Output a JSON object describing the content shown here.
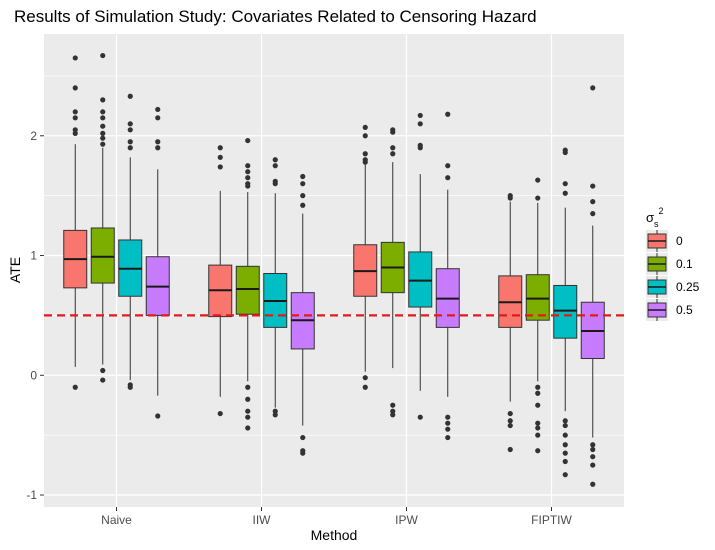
{
  "chart_data": {
    "type": "boxplot",
    "title": "Results of Simulation Study: Covariates Related to Censoring Hazard",
    "xlabel": "Method",
    "ylabel": "ATE",
    "categories": [
      "Naive",
      "IIW",
      "IPW",
      "FIPTIW"
    ],
    "ylim": [
      -1.1,
      2.85
    ],
    "y_ticks": [
      -1,
      0,
      1,
      2
    ],
    "grid": true,
    "reference_line": {
      "y": 0.5,
      "color": "#e31a1c",
      "style": "dashed"
    },
    "legend": {
      "position": "right",
      "title": "σs²",
      "entries": [
        {
          "label": "0",
          "color": "#F8766D"
        },
        {
          "label": "0.1",
          "color": "#7CAE00"
        },
        {
          "label": "0.25",
          "color": "#00BFC4"
        },
        {
          "label": "0.5",
          "color": "#C77CFF"
        }
      ]
    },
    "series": [
      {
        "name": "0",
        "color": "#F8766D",
        "boxes": [
          {
            "q1": 0.73,
            "median": 0.97,
            "q3": 1.21,
            "lower": 0.07,
            "upper": 1.93,
            "outliers": [
              2.65,
              2.4,
              2.2,
              2.15,
              2.05,
              2.02,
              -0.1
            ]
          },
          {
            "q1": 0.49,
            "median": 0.71,
            "q3": 0.92,
            "lower": -0.18,
            "upper": 1.54,
            "outliers": [
              1.9,
              1.82,
              1.74,
              -0.32
            ]
          },
          {
            "q1": 0.66,
            "median": 0.87,
            "q3": 1.09,
            "lower": 0.03,
            "upper": 1.76,
            "outliers": [
              2.07,
              2.0,
              1.85,
              1.8,
              1.78,
              -0.02,
              -0.1
            ]
          },
          {
            "q1": 0.4,
            "median": 0.61,
            "q3": 0.83,
            "lower": -0.22,
            "upper": 1.45,
            "outliers": [
              1.5,
              1.48,
              -0.32,
              -0.38,
              -0.42,
              -0.62
            ]
          }
        ]
      },
      {
        "name": "0.1",
        "color": "#7CAE00",
        "boxes": [
          {
            "q1": 0.77,
            "median": 0.99,
            "q3": 1.23,
            "lower": 0.09,
            "upper": 1.9,
            "outliers": [
              2.67,
              2.3,
              2.2,
              2.15,
              2.08,
              2.02,
              1.98,
              1.93,
              0.04,
              -0.04
            ]
          },
          {
            "q1": 0.51,
            "median": 0.72,
            "q3": 0.91,
            "lower": -0.05,
            "upper": 1.53,
            "outliers": [
              1.96,
              1.75,
              1.7,
              1.65,
              1.6,
              1.58,
              -0.1,
              -0.2,
              -0.3,
              -0.35,
              -0.44
            ]
          },
          {
            "q1": 0.69,
            "median": 0.9,
            "q3": 1.11,
            "lower": 0.06,
            "upper": 1.78,
            "outliers": [
              2.05,
              2.03,
              1.9,
              1.85,
              -0.25,
              -0.3,
              -0.33
            ]
          },
          {
            "q1": 0.46,
            "median": 0.64,
            "q3": 0.84,
            "lower": -0.05,
            "upper": 1.44,
            "outliers": [
              1.63,
              1.48,
              -0.1,
              -0.15,
              -0.25,
              -0.4,
              -0.44,
              -0.5,
              -0.63
            ]
          }
        ]
      },
      {
        "name": "0.25",
        "color": "#00BFC4",
        "boxes": [
          {
            "q1": 0.66,
            "median": 0.89,
            "q3": 1.13,
            "lower": -0.04,
            "upper": 1.82,
            "outliers": [
              2.33,
              2.1,
              2.05,
              1.95,
              1.9,
              -0.08,
              -0.1
            ]
          },
          {
            "q1": 0.4,
            "median": 0.62,
            "q3": 0.85,
            "lower": -0.27,
            "upper": 1.52,
            "outliers": [
              1.8,
              1.75,
              1.62,
              1.6,
              -0.3,
              -0.33
            ]
          },
          {
            "q1": 0.57,
            "median": 0.79,
            "q3": 1.03,
            "lower": -0.13,
            "upper": 1.68,
            "outliers": [
              2.17,
              2.1,
              1.92,
              1.9,
              -0.35
            ]
          },
          {
            "q1": 0.31,
            "median": 0.54,
            "q3": 0.75,
            "lower": -0.3,
            "upper": 1.4,
            "outliers": [
              1.88,
              1.86,
              1.6,
              1.52,
              -0.38,
              -0.42,
              -0.5,
              -0.58,
              -0.65,
              -0.72,
              -0.83
            ]
          }
        ]
      },
      {
        "name": "0.5",
        "color": "#C77CFF",
        "boxes": [
          {
            "q1": 0.5,
            "median": 0.74,
            "q3": 0.99,
            "lower": -0.17,
            "upper": 1.72,
            "outliers": [
              2.22,
              2.15,
              1.95,
              1.9,
              -0.34
            ]
          },
          {
            "q1": 0.22,
            "median": 0.46,
            "q3": 0.69,
            "lower": -0.42,
            "upper": 1.35,
            "outliers": [
              1.66,
              1.6,
              1.5,
              1.42,
              -0.52,
              -0.63,
              -0.65
            ]
          },
          {
            "q1": 0.4,
            "median": 0.64,
            "q3": 0.89,
            "lower": -0.18,
            "upper": 1.55,
            "outliers": [
              2.18,
              1.75,
              1.65,
              -0.35,
              -0.4,
              -0.45,
              -0.52
            ]
          },
          {
            "q1": 0.14,
            "median": 0.37,
            "q3": 0.61,
            "lower": -0.52,
            "upper": 1.25,
            "outliers": [
              2.4,
              1.58,
              1.45,
              1.35,
              -0.58,
              -0.62,
              -0.68,
              -0.75,
              -0.91
            ]
          }
        ]
      }
    ]
  }
}
